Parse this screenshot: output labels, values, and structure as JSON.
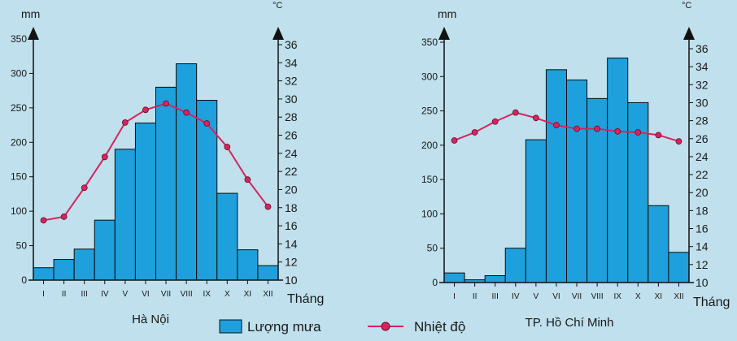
{
  "chart_data": [
    {
      "type": "bar",
      "title": "Hà Nội",
      "categories": [
        "I",
        "II",
        "III",
        "IV",
        "V",
        "VI",
        "VII",
        "VIII",
        "IX",
        "X",
        "XI",
        "XII"
      ],
      "xlabel": "Tháng",
      "ylabel": "mm",
      "y2label": "°C",
      "ylim": [
        0,
        350
      ],
      "yticks": [
        0,
        50,
        100,
        150,
        200,
        250,
        300,
        350
      ],
      "y2lim": [
        10,
        36
      ],
      "y2ticks": [
        10,
        12,
        14,
        16,
        18,
        20,
        22,
        24,
        26,
        28,
        30,
        32,
        34,
        36
      ],
      "series": [
        {
          "name": "Lượng mưa",
          "axis": "left",
          "type": "bar",
          "color": "#1ea0dc",
          "values": [
            18,
            30,
            45,
            87,
            190,
            228,
            280,
            314,
            261,
            126,
            44,
            21
          ]
        },
        {
          "name": "Nhiệt độ",
          "axis": "right",
          "type": "line",
          "color": "#d6245f",
          "values": [
            16.6,
            17.0,
            20.2,
            23.6,
            27.4,
            28.8,
            29.5,
            28.5,
            27.3,
            24.7,
            21.1,
            18.1
          ]
        }
      ]
    },
    {
      "type": "bar",
      "title": "TP. Hồ Chí Minh",
      "categories": [
        "I",
        "II",
        "III",
        "IV",
        "V",
        "VI",
        "VII",
        "VIII",
        "IX",
        "X",
        "XI",
        "XII"
      ],
      "xlabel": "Tháng",
      "ylabel": "mm",
      "y2label": "°C",
      "ylim": [
        0,
        350
      ],
      "yticks": [
        0,
        50,
        100,
        150,
        200,
        250,
        300,
        350
      ],
      "y2lim": [
        10,
        36
      ],
      "y2ticks": [
        10,
        12,
        14,
        16,
        18,
        20,
        22,
        24,
        26,
        28,
        30,
        32,
        34,
        36
      ],
      "series": [
        {
          "name": "Lượng mưa",
          "axis": "left",
          "type": "bar",
          "color": "#1ea0dc",
          "values": [
            14,
            4,
            10,
            50,
            208,
            310,
            295,
            268,
            327,
            262,
            112,
            44
          ]
        },
        {
          "name": "Nhiệt độ",
          "axis": "right",
          "type": "line",
          "color": "#d6245f",
          "values": [
            25.8,
            26.7,
            27.9,
            28.9,
            28.3,
            27.5,
            27.1,
            27.1,
            26.8,
            26.7,
            26.4,
            25.7
          ]
        }
      ]
    }
  ],
  "legend": {
    "rain_label": "Lượng mưa",
    "temp_label": "Nhiệt độ",
    "rain_color": "#1ea0dc",
    "temp_color": "#d6245f"
  }
}
